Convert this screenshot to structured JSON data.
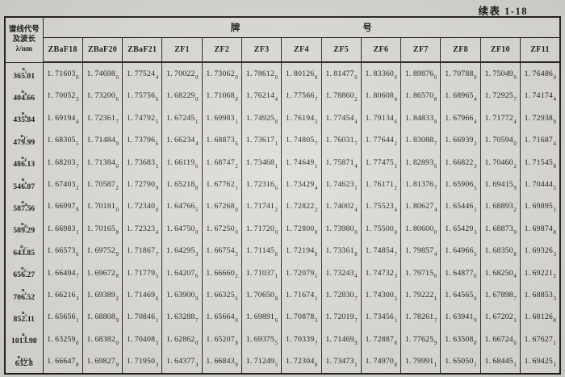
{
  "caption": "续表 1-18",
  "header": {
    "corner_lines": [
      "谱线代号",
      "及波长",
      "λ/nm"
    ],
    "group_label_left": "牌",
    "group_label_right": "号",
    "columns": [
      "ZBaF18",
      "ZBaF20",
      "ZBaF21",
      "ZF1",
      "ZF2",
      "ZF3",
      "ZF4",
      "ZF5",
      "ZF6",
      "ZF7",
      "ZF8",
      "ZF10",
      "ZF11"
    ]
  },
  "rows": [
    {
      "line": "i",
      "wavelength": "365.01",
      "values": [
        [
          "1.71603",
          "0"
        ],
        [
          "1.74698",
          "0"
        ],
        [
          "1.77524",
          "4"
        ],
        [
          "1.70022",
          "0"
        ],
        [
          "1.73062",
          "0"
        ],
        [
          "1.78612",
          "0"
        ],
        [
          "1.80126",
          "0"
        ],
        [
          "1.81477",
          "0"
        ],
        [
          "1.83360",
          "0"
        ],
        [
          "1.89876",
          "0"
        ],
        [
          "1.70788",
          "0"
        ],
        [
          "1.75049",
          "0"
        ],
        [
          "1.76486",
          "0"
        ]
      ]
    },
    {
      "line": "h",
      "wavelength": "404.66",
      "values": [
        [
          "1.70052",
          "3"
        ],
        [
          "1.73200",
          "6"
        ],
        [
          "1.75756",
          "6"
        ],
        [
          "1.68229",
          "0"
        ],
        [
          "1.71068",
          "0"
        ],
        [
          "1.76214",
          "4"
        ],
        [
          "1.77566",
          "7"
        ],
        [
          "1.78860",
          "2"
        ],
        [
          "1.80608",
          "4"
        ],
        [
          "1.86570",
          "8"
        ],
        [
          "1.68965",
          "4"
        ],
        [
          "1.72925",
          "7"
        ],
        [
          "1.74174",
          "4"
        ]
      ]
    },
    {
      "line": "g",
      "wavelength": "435.84",
      "values": [
        [
          "1.69194",
          "4"
        ],
        [
          "1.72361",
          "7"
        ],
        [
          "1.74792",
          "5"
        ],
        [
          "1.67245",
          "1"
        ],
        [
          "1.69983",
          "1"
        ],
        [
          "1.74925",
          "8"
        ],
        [
          "1.76194",
          "3"
        ],
        [
          "1.77454",
          "4"
        ],
        [
          "1.79134",
          "6"
        ],
        [
          "1.84833",
          "8"
        ],
        [
          "1.67966",
          "4"
        ],
        [
          "1.71772",
          "4"
        ],
        [
          "1.72938",
          "9"
        ]
      ]
    },
    {
      "line": "F′",
      "wavelength": "479.99",
      "values": [
        [
          "1.68305",
          "5"
        ],
        [
          "1.71484",
          "9"
        ],
        [
          "1.73796",
          "6"
        ],
        [
          "1.66234",
          "4"
        ],
        [
          "1.68873",
          "6"
        ],
        [
          "1.73617",
          "1"
        ],
        [
          "1.74805",
          "7"
        ],
        [
          "1.76031",
          "7"
        ],
        [
          "1.77644",
          "2"
        ],
        [
          "1.83088",
          "7"
        ],
        [
          "1.66939",
          "3"
        ],
        [
          "1.70594",
          "0"
        ],
        [
          "1.71687",
          "4"
        ]
      ]
    },
    {
      "line": "F",
      "wavelength": "486.13",
      "values": [
        [
          "1.68203",
          "7"
        ],
        [
          "1.71384",
          "0"
        ],
        [
          "1.73683",
          "5"
        ],
        [
          "1.66119",
          "6"
        ],
        [
          "1.68747",
          "2"
        ],
        [
          "1.73468",
          "1"
        ],
        [
          "1.74649",
          "1"
        ],
        [
          "1.75871",
          "4"
        ],
        [
          "1.77475",
          "5"
        ],
        [
          "1.82893",
          "6"
        ],
        [
          "1.66822",
          "3"
        ],
        [
          "1.70460",
          "2"
        ],
        [
          "1.71545",
          "8"
        ]
      ]
    },
    {
      "line": "e",
      "wavelength": "546.07",
      "values": [
        [
          "1.67403",
          "2"
        ],
        [
          "1.70587",
          "2"
        ],
        [
          "1.72790",
          "9"
        ],
        [
          "1.65218",
          "8"
        ],
        [
          "1.67762",
          "1"
        ],
        [
          "1.72316",
          "6"
        ],
        [
          "1.73429",
          "4"
        ],
        [
          "1.74623",
          "1"
        ],
        [
          "1.76171",
          "2"
        ],
        [
          "1.81376",
          "7"
        ],
        [
          "1.65906",
          "5"
        ],
        [
          "1.69415",
          "9"
        ],
        [
          "1.70444",
          "5"
        ]
      ]
    },
    {
      "line": "d",
      "wavelength": "587.56",
      "values": [
        [
          "1.66997",
          "9"
        ],
        [
          "1.70181",
          "0"
        ],
        [
          "1.72340",
          "0"
        ],
        [
          "1.64766",
          "5"
        ],
        [
          "1.67268",
          "0"
        ],
        [
          "1.71741",
          "2"
        ],
        [
          "1.72822",
          "2"
        ],
        [
          "1.74002",
          "4"
        ],
        [
          "1.75523",
          "4"
        ],
        [
          "1.80627",
          "4"
        ],
        [
          "1.65446",
          "1"
        ],
        [
          "1.68893",
          "2"
        ],
        [
          "1.69895",
          "1"
        ]
      ]
    },
    {
      "line": "D",
      "wavelength": "589.29",
      "values": [
        [
          "1.66983",
          "1"
        ],
        [
          "1.70165",
          "8"
        ],
        [
          "1.72323",
          "4"
        ],
        [
          "1.64750",
          "0"
        ],
        [
          "1.67250",
          "0"
        ],
        [
          "1.71720",
          "0"
        ],
        [
          "1.72800",
          "0"
        ],
        [
          "1.73980",
          "0"
        ],
        [
          "1.75500",
          "0"
        ],
        [
          "1.80600",
          "0"
        ],
        [
          "1.65429",
          "3"
        ],
        [
          "1.68873",
          "9"
        ],
        [
          "1.69874",
          "8"
        ]
      ]
    },
    {
      "line": "C′",
      "wavelength": "643.85",
      "values": [
        [
          "1.66573",
          "6"
        ],
        [
          "1.69752",
          "9"
        ],
        [
          "1.71867",
          "7"
        ],
        [
          "1.64295",
          "3"
        ],
        [
          "1.66754",
          "3"
        ],
        [
          "1.71145",
          "8"
        ],
        [
          "1.72194",
          "9"
        ],
        [
          "1.73361",
          "8"
        ],
        [
          "1.74854",
          "7"
        ],
        [
          "1.79857",
          "4"
        ],
        [
          "1.64966",
          "5"
        ],
        [
          "1.68350",
          "8"
        ],
        [
          "1.69326",
          "3"
        ]
      ]
    },
    {
      "line": "C",
      "wavelength": "656.27",
      "values": [
        [
          "1.66494",
          "7"
        ],
        [
          "1.69672",
          "8"
        ],
        [
          "1.71779",
          "5"
        ],
        [
          "1.64207",
          "6"
        ],
        [
          "1.66660",
          "2"
        ],
        [
          "1.71037",
          "1"
        ],
        [
          "1.72079",
          "1"
        ],
        [
          "1.73243",
          "4"
        ],
        [
          "1.74732",
          "3"
        ],
        [
          "1.79715",
          "6"
        ],
        [
          "1.64877",
          "6"
        ],
        [
          "1.68250",
          "4"
        ],
        [
          "1.69221",
          "2"
        ]
      ]
    },
    {
      "line": "r",
      "wavelength": "706.52",
      "values": [
        [
          "1.66216",
          "3"
        ],
        [
          "1.69389",
          "2"
        ],
        [
          "1.71469",
          "6"
        ],
        [
          "1.63900",
          "9"
        ],
        [
          "1.66325",
          "6"
        ],
        [
          "1.70650",
          "8"
        ],
        [
          "1.71674",
          "1"
        ],
        [
          "1.72830",
          "7"
        ],
        [
          "1.74300",
          "5"
        ],
        [
          "1.79222",
          "1"
        ],
        [
          "1.64565",
          "0"
        ],
        [
          "1.67898",
          "7"
        ],
        [
          "1.68853",
          "3"
        ]
      ]
    },
    {
      "line": "s",
      "wavelength": "852.11",
      "values": [
        [
          "1.65656",
          "1"
        ],
        [
          "1.68808",
          "9"
        ],
        [
          "1.70846",
          "1"
        ],
        [
          "1.63288",
          "7"
        ],
        [
          "1.65664",
          "0"
        ],
        [
          "1.69891",
          "6"
        ],
        [
          "1.70878",
          "3"
        ],
        [
          "1.72019",
          "7"
        ],
        [
          "1.73456",
          "1"
        ],
        [
          "1.78261",
          "7"
        ],
        [
          "1.63941",
          "9"
        ],
        [
          "1.67202",
          "1"
        ],
        [
          "1.68126",
          "8"
        ]
      ]
    },
    {
      "line": "t",
      "wavelength": "1013.98",
      "values": [
        [
          "1.63259",
          "0"
        ],
        [
          "1.68382",
          "0"
        ],
        [
          "1.70408",
          "5"
        ],
        [
          "1.62862",
          "0"
        ],
        [
          "1.65207",
          "8"
        ],
        [
          "1.69375",
          "5"
        ],
        [
          "1.70339",
          "7"
        ],
        [
          "1.71469",
          "9"
        ],
        [
          "1.72887",
          "8"
        ],
        [
          "1.77625",
          "9"
        ],
        [
          "1.63508",
          "0"
        ],
        [
          "1.66724",
          "0"
        ],
        [
          "1.67627",
          "1"
        ]
      ]
    },
    {
      "line": "632.8",
      "wavelength": "632.8",
      "values": [
        [
          "1.66647",
          "8"
        ],
        [
          "1.69827",
          "9"
        ],
        [
          "1.71950",
          "3"
        ],
        [
          "1.64377",
          "3"
        ],
        [
          "1.66843",
          "9"
        ],
        [
          "1.71249",
          "5"
        ],
        [
          "1.72304",
          "0"
        ],
        [
          "1.73473",
          "1"
        ],
        [
          "1.74970",
          "8"
        ],
        [
          "1.79991",
          "1"
        ],
        [
          "1.65050",
          "1"
        ],
        [
          "1.68445",
          "1"
        ],
        [
          "1.69425",
          "1"
        ]
      ]
    }
  ],
  "colors": {
    "paper": "#d8d6d0",
    "ink": "#1b1915"
  }
}
